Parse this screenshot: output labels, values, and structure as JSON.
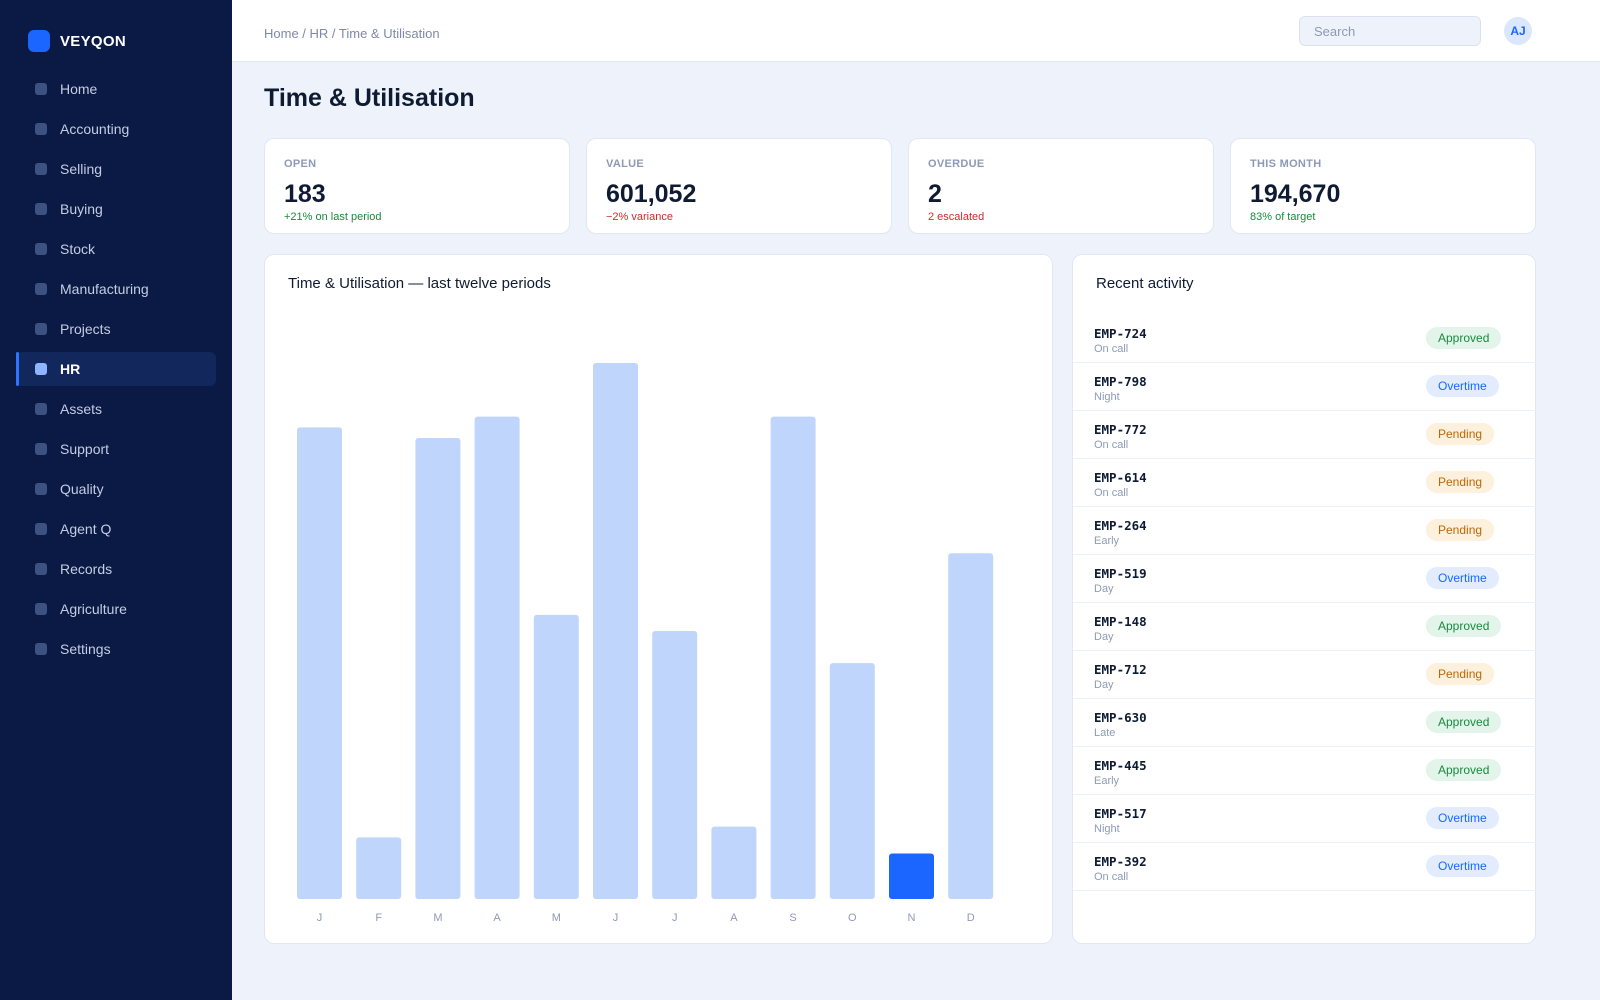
{
  "app": {
    "name": "VEYQON"
  },
  "colors": {
    "accent": "#1a66ff",
    "sidebar": "#0a1a45",
    "bar": "#bfd5fc",
    "bar_highlight": "#1a66ff"
  },
  "sidebar": {
    "items": [
      {
        "label": "Home",
        "active": false
      },
      {
        "label": "Accounting",
        "active": false
      },
      {
        "label": "Selling",
        "active": false
      },
      {
        "label": "Buying",
        "active": false
      },
      {
        "label": "Stock",
        "active": false
      },
      {
        "label": "Manufacturing",
        "active": false
      },
      {
        "label": "Projects",
        "active": false
      },
      {
        "label": "HR",
        "active": true
      },
      {
        "label": "Assets",
        "active": false
      },
      {
        "label": "Support",
        "active": false
      },
      {
        "label": "Quality",
        "active": false
      },
      {
        "label": "Agent Q",
        "active": false
      },
      {
        "label": "Records",
        "active": false
      },
      {
        "label": "Agriculture",
        "active": false
      },
      {
        "label": "Settings",
        "active": false
      }
    ]
  },
  "header": {
    "breadcrumb": "Home / HR / Time & Utilisation",
    "search_placeholder": "Search",
    "avatar_initials": "AJ"
  },
  "page": {
    "title": "Time & Utilisation"
  },
  "kpis": [
    {
      "label": "OPEN",
      "value": "183",
      "note": "+21% on last period",
      "trend": "pos"
    },
    {
      "label": "VALUE",
      "value": "601,052",
      "note": "−2% variance",
      "trend": "neg"
    },
    {
      "label": "OVERDUE",
      "value": "2",
      "note": "2 escalated",
      "trend": "neg"
    },
    {
      "label": "THIS MONTH",
      "value": "194,670",
      "note": "83% of target",
      "trend": "pos"
    }
  ],
  "chart_data": {
    "type": "bar",
    "title": "Time & Utilisation — last twelve periods",
    "categories": [
      "J",
      "F",
      "M",
      "A",
      "M",
      "J",
      "J",
      "A",
      "S",
      "O",
      "N",
      "D"
    ],
    "values": [
      88,
      11.5,
      86,
      90,
      53,
      100,
      50,
      13.5,
      90,
      44,
      8.5,
      64.5
    ],
    "highlight_index": 10,
    "ylim": [
      0,
      100
    ],
    "grid": false,
    "legend": "none"
  },
  "activity": {
    "title": "Recent activity",
    "items": [
      {
        "id": "EMP-724",
        "sub": "On call",
        "status": "Approved",
        "kind": "approved"
      },
      {
        "id": "EMP-798",
        "sub": "Night",
        "status": "Overtime",
        "kind": "overtime"
      },
      {
        "id": "EMP-772",
        "sub": "On call",
        "status": "Pending",
        "kind": "pending"
      },
      {
        "id": "EMP-614",
        "sub": "On call",
        "status": "Pending",
        "kind": "pending"
      },
      {
        "id": "EMP-264",
        "sub": "Early",
        "status": "Pending",
        "kind": "pending"
      },
      {
        "id": "EMP-519",
        "sub": "Day",
        "status": "Overtime",
        "kind": "overtime"
      },
      {
        "id": "EMP-148",
        "sub": "Day",
        "status": "Approved",
        "kind": "approved"
      },
      {
        "id": "EMP-712",
        "sub": "Day",
        "status": "Pending",
        "kind": "pending"
      },
      {
        "id": "EMP-630",
        "sub": "Late",
        "status": "Approved",
        "kind": "approved"
      },
      {
        "id": "EMP-445",
        "sub": "Early",
        "status": "Approved",
        "kind": "approved"
      },
      {
        "id": "EMP-517",
        "sub": "Night",
        "status": "Overtime",
        "kind": "overtime"
      },
      {
        "id": "EMP-392",
        "sub": "On call",
        "status": "Overtime",
        "kind": "overtime"
      }
    ]
  }
}
